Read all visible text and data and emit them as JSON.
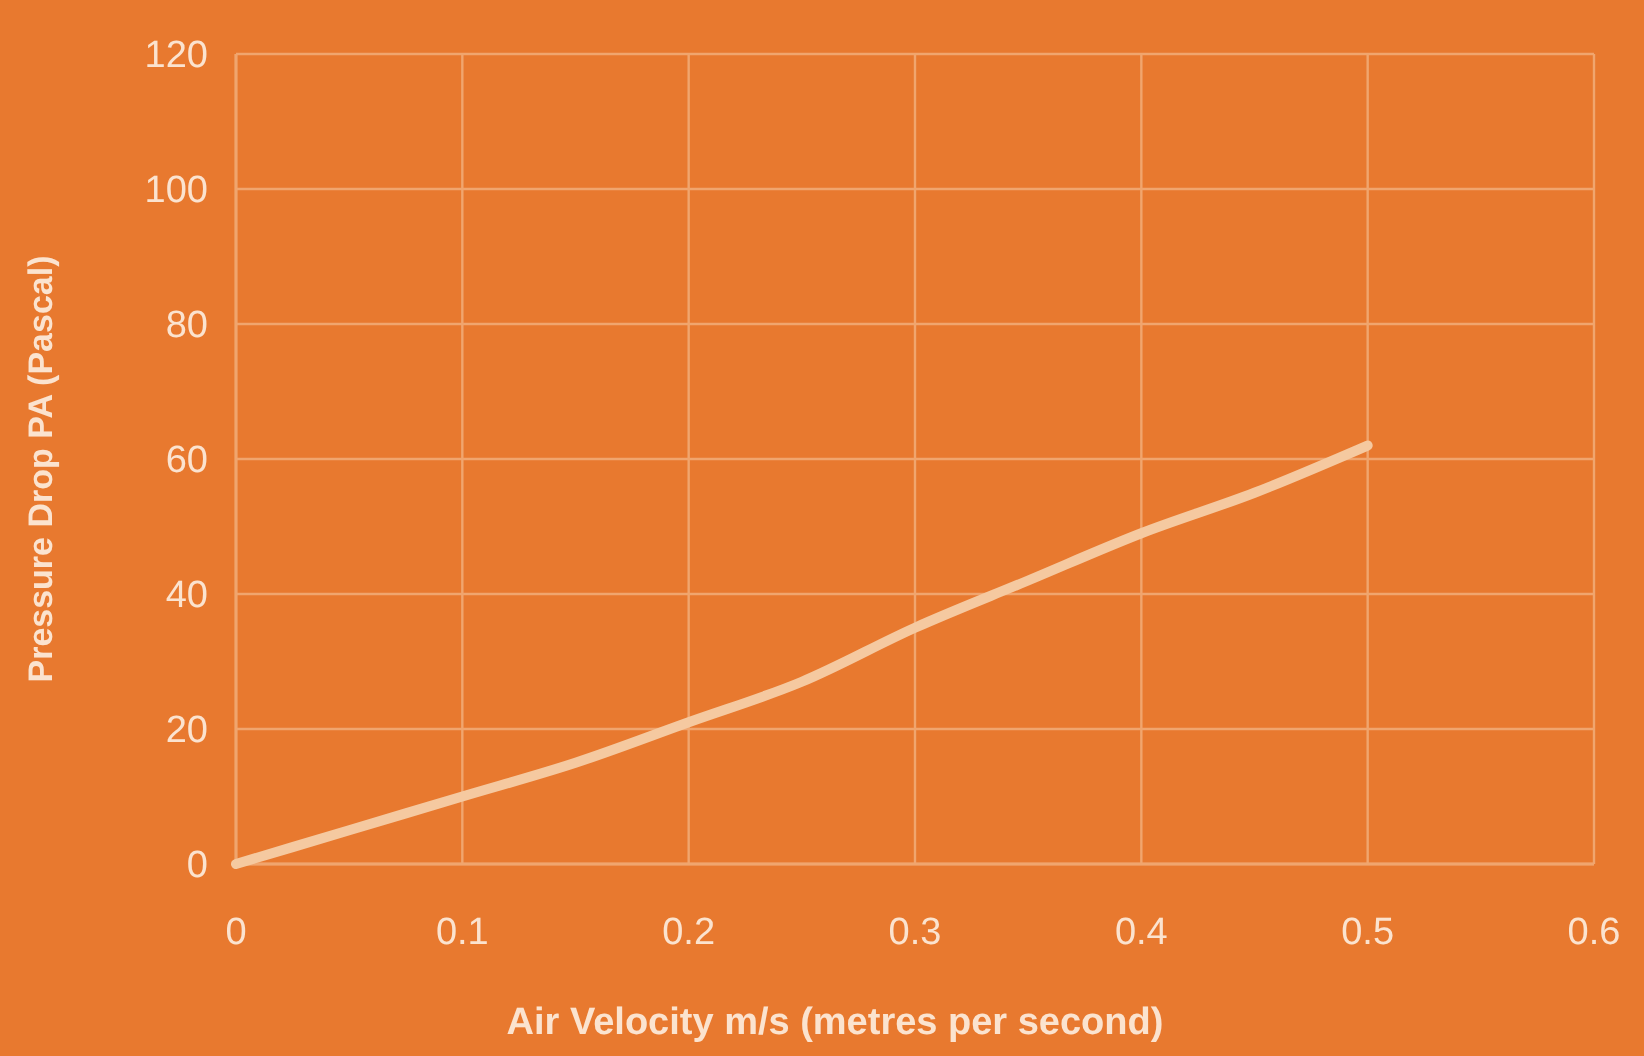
{
  "chart_data": {
    "type": "line",
    "xlabel": "Air Velocity m/s (metres per second)",
    "ylabel": "Pressure Drop PA (Pascal)",
    "x": [
      0,
      0.05,
      0.1,
      0.15,
      0.2,
      0.25,
      0.3,
      0.35,
      0.4,
      0.45,
      0.5
    ],
    "series": [
      {
        "color": "#f5c9a0",
        "values": [
          0,
          5,
          10,
          15,
          21,
          27,
          35,
          42,
          49,
          55,
          62
        ]
      }
    ],
    "xlim": [
      0,
      0.6
    ],
    "xticks": [
      0,
      0.1,
      0.2,
      0.3,
      0.4,
      0.5,
      0.6
    ],
    "ylim": [
      0,
      120
    ],
    "yticks": [
      0,
      20,
      40,
      60,
      80,
      100,
      120
    ],
    "grid": true,
    "marker": "none",
    "line_style": "solid"
  }
}
